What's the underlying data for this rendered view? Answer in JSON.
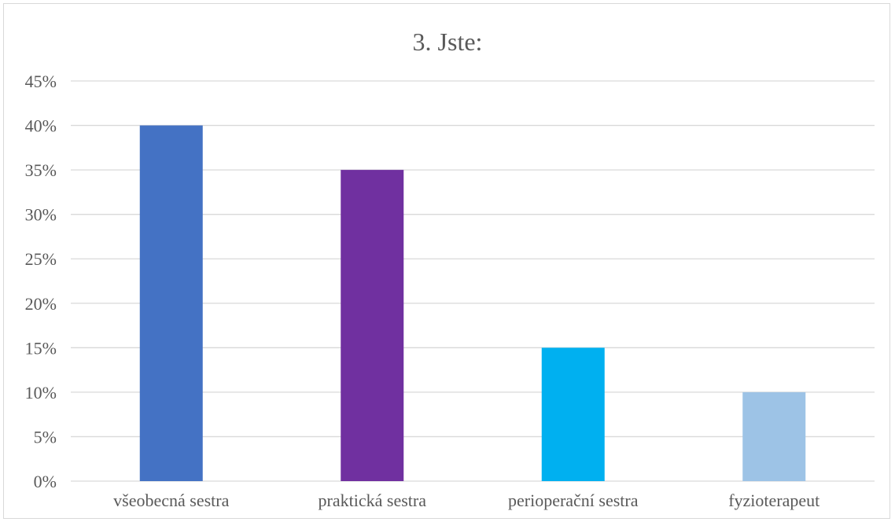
{
  "chart_data": {
    "type": "bar",
    "title": "3. Jste:",
    "categories": [
      "všeobecná sestra",
      "praktická sestra",
      "perioperační sestra",
      "fyzioterapeut"
    ],
    "values": [
      40,
      35,
      15,
      10
    ],
    "value_unit": "%",
    "ylim": [
      0,
      45
    ],
    "yticks": [
      "0%",
      "5%",
      "10%",
      "15%",
      "20%",
      "25%",
      "30%",
      "35%",
      "40%",
      "45%"
    ],
    "xlabel": "",
    "ylabel": "",
    "grid": true,
    "legend": "none",
    "colors": [
      "#4472C4",
      "#7030A0",
      "#00B0F0",
      "#9DC3E6"
    ]
  }
}
